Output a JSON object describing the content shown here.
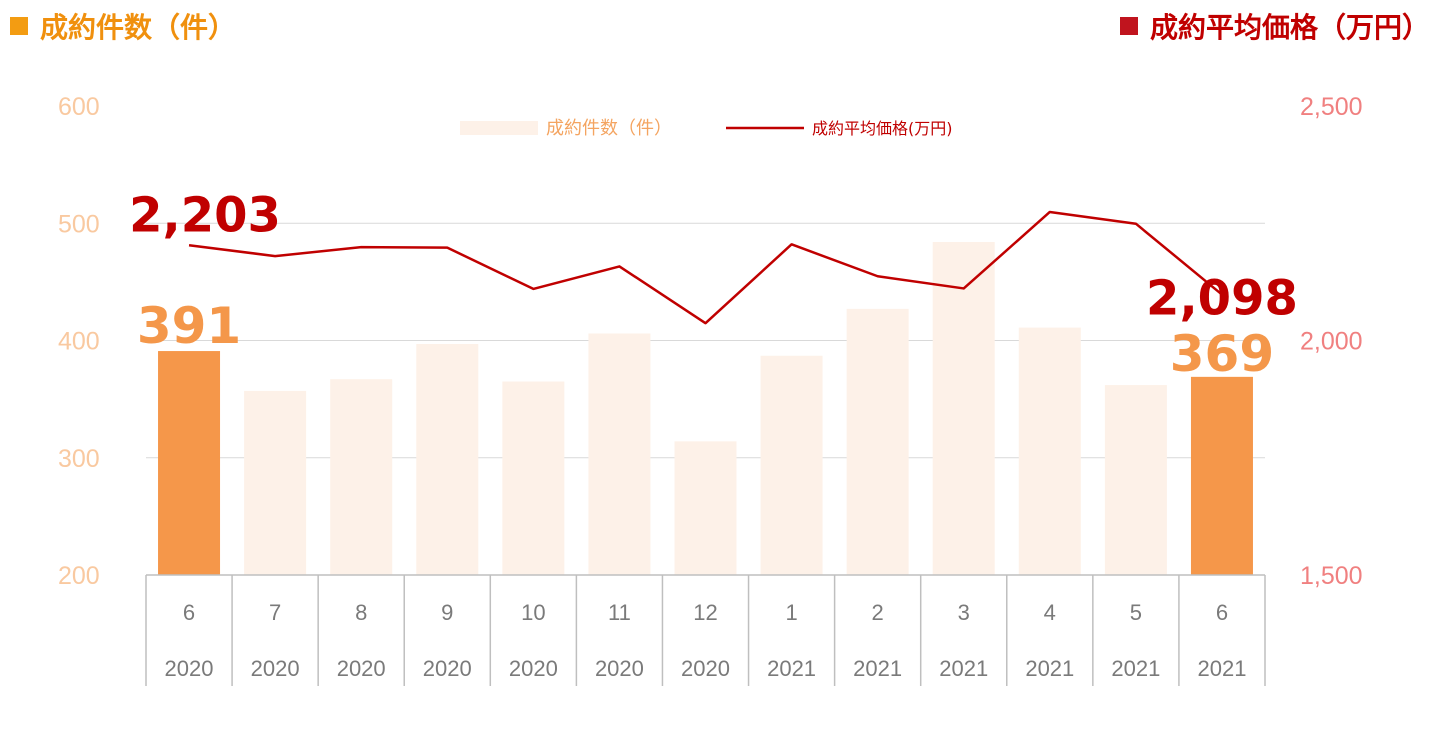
{
  "header_left": "成約件数（件）",
  "header_right": "成約平均価格（万円）",
  "legend": {
    "count": "成約件数（件）",
    "price": "成約平均価格(万円)"
  },
  "colors": {
    "bar_highlight": "#f5974a",
    "bar_normal": "#fdf1e8",
    "line": "#c00000",
    "axis_left": "#f9c9a0",
    "axis_right": "#f08080"
  },
  "chart_data": {
    "type": "bar",
    "categories": [
      "6",
      "7",
      "8",
      "9",
      "10",
      "11",
      "12",
      "1",
      "2",
      "3",
      "4",
      "5",
      "6"
    ],
    "years": [
      "2020",
      "2020",
      "2020",
      "2020",
      "2020",
      "2020",
      "2020",
      "2021",
      "2021",
      "2021",
      "2021",
      "2021",
      "2021"
    ],
    "series": [
      {
        "name": "成約件数（件）",
        "type": "bar",
        "axis": "left",
        "values": [
          391,
          357,
          367,
          397,
          365,
          406,
          314,
          387,
          427,
          484,
          411,
          362,
          369
        ],
        "highlight": [
          0,
          12
        ]
      },
      {
        "name": "成約平均価格(万円)",
        "type": "line",
        "axis": "right",
        "values": [
          2203,
          2180,
          2199,
          2198,
          2110,
          2158,
          2037,
          2205,
          2137,
          2111,
          2274,
          2249,
          2098
        ]
      }
    ],
    "ylim_left": [
      200,
      600
    ],
    "yticks_left": [
      "200",
      "300",
      "400",
      "500",
      "600"
    ],
    "ylim_right": [
      1500,
      2500
    ],
    "yticks_right": [
      "1,500",
      "2,000",
      "2,500"
    ],
    "data_labels": {
      "bar_first": "391",
      "bar_last": "369",
      "line_first": "2,203",
      "line_last": "2,098"
    },
    "grid": true,
    "legend_position": "top-center"
  }
}
